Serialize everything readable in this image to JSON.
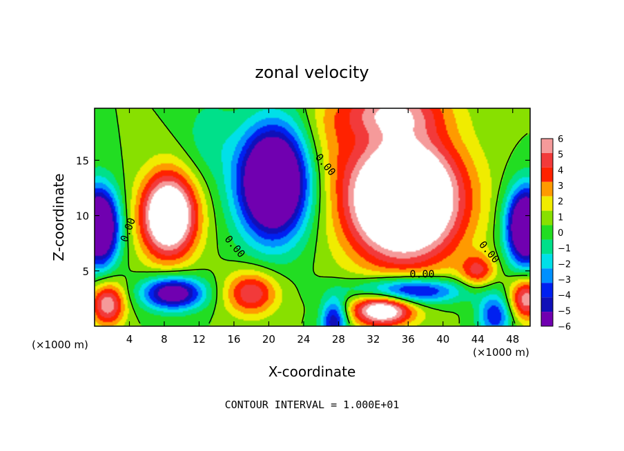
{
  "chart_data": {
    "type": "heatmap",
    "title": "zonal velocity",
    "xlabel": "X-coordinate",
    "ylabel": "Z-coordinate",
    "x_unit_left": "(×1000 m)",
    "x_unit_right": "(×1000 m)",
    "x_ticks": [
      4,
      8,
      12,
      16,
      20,
      24,
      28,
      32,
      36,
      40,
      44,
      48
    ],
    "y_ticks": [
      5,
      10,
      15
    ],
    "xlim": [
      0,
      50
    ],
    "ylim": [
      0,
      19.7
    ],
    "colorbar": {
      "ticks": [
        6,
        5,
        4,
        3,
        2,
        1,
        0,
        -1,
        -2,
        -3,
        -4,
        -5,
        -6
      ],
      "levels": [
        {
          "lo": 5,
          "hi": 6,
          "color": "#f59a9a"
        },
        {
          "lo": 4,
          "hi": 5,
          "color": "#f23a3a"
        },
        {
          "lo": 3,
          "hi": 4,
          "color": "#ff2200"
        },
        {
          "lo": 2,
          "hi": 3,
          "color": "#ff9a00"
        },
        {
          "lo": 1,
          "hi": 2,
          "color": "#f0ec00"
        },
        {
          "lo": 0,
          "hi": 1,
          "color": "#88e000"
        },
        {
          "lo": -1,
          "hi": 0,
          "color": "#22dd22"
        },
        {
          "lo": -2,
          "hi": -1,
          "color": "#00e08a"
        },
        {
          "lo": -3,
          "hi": -2,
          "color": "#00e0e8"
        },
        {
          "lo": -4,
          "hi": -3,
          "color": "#0090ff"
        },
        {
          "lo": -5,
          "hi": -4,
          "color": "#0020f0"
        },
        {
          "lo": -6,
          "hi": -5,
          "color": "#1010b8"
        },
        {
          "lo": -7,
          "hi": -6,
          "color": "#7000b0"
        }
      ]
    },
    "contour_labels": [
      "0.00",
      "0.00",
      "0.00",
      "0.00",
      "0.00"
    ],
    "footer": "CONTOUR INTERVAL = 1.000E+01",
    "sources": [
      {
        "x": 8.5,
        "z": 10.0,
        "a": 10,
        "sx": 3.2,
        "sz": 3.8
      },
      {
        "x": 35.5,
        "z": 11.5,
        "a": 13,
        "sx": 6.5,
        "sz": 5.5
      },
      {
        "x": 34.0,
        "z": 19.5,
        "a": 5,
        "sx": 6.0,
        "sz": 2.5
      },
      {
        "x": 18.0,
        "z": 3.0,
        "a": 5,
        "sx": 3.0,
        "sz": 2.0
      },
      {
        "x": 44.0,
        "z": 5.0,
        "a": 4,
        "sx": 2.0,
        "sz": 1.5
      },
      {
        "x": 1.5,
        "z": 2.0,
        "a": 6,
        "sx": 2.0,
        "sz": 2.0
      },
      {
        "x": 33.0,
        "z": 1.5,
        "a": 8,
        "sx": 3.5,
        "sz": 1.5
      },
      {
        "x": 49.5,
        "z": 2.5,
        "a": 6,
        "sx": 2.0,
        "sz": 2.0
      },
      {
        "x": 20.5,
        "z": 13.0,
        "a": -12,
        "sx": 4.0,
        "sz": 5.0
      },
      {
        "x": 0.5,
        "z": 9.0,
        "a": -11,
        "sx": 2.2,
        "sz": 3.5
      },
      {
        "x": 49.5,
        "z": 9.0,
        "a": -11,
        "sx": 2.2,
        "sz": 3.5
      },
      {
        "x": 9.0,
        "z": 3.0,
        "a": -8,
        "sx": 3.5,
        "sz": 1.5
      },
      {
        "x": 36.0,
        "z": 3.2,
        "a": -7,
        "sx": 6.0,
        "sz": 1.2
      },
      {
        "x": 27.5,
        "z": 0.5,
        "a": -6,
        "sx": 1.5,
        "sz": 2.0
      },
      {
        "x": 46.0,
        "z": 1.0,
        "a": -5,
        "sx": 2.0,
        "sz": 2.0
      },
      {
        "x": 13.0,
        "z": 17.0,
        "a": -1.5,
        "sx": 3.0,
        "sz": 4.0
      },
      {
        "x": 27.0,
        "z": 17.0,
        "a": 1.5,
        "sx": 3.0,
        "sz": 4.0
      }
    ]
  }
}
